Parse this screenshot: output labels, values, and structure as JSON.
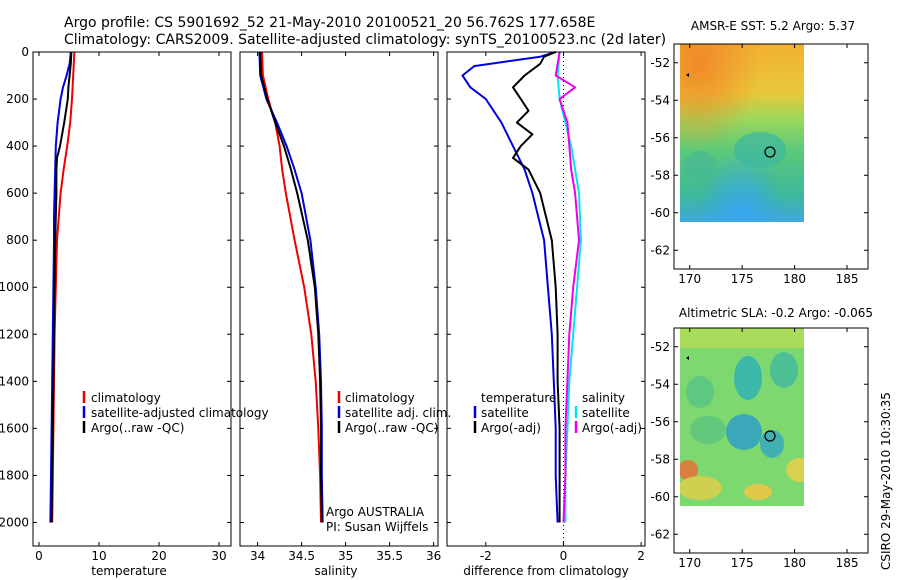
{
  "header": {
    "line1": "Argo profile: CS 5901692_52 21-May-2010 20100521_20 56.762S 177.658E",
    "line2": "Climatology: CARS2009. Satellite-adjusted climatology: synTS_20100523.nc (2d later)"
  },
  "side_label": "CSIRO 29-May-2010 10:30:35",
  "colors": {
    "climatology": "#ee0000",
    "satellite": "#0000dd",
    "argo": "#000000",
    "satellite_sal_diff": "#00e5ee",
    "argo_sal_diff": "#ee00ee"
  },
  "chart_data": [
    {
      "id": "temperature",
      "type": "line",
      "xlabel": "temperature",
      "ylabel": "",
      "xlim": [
        -1,
        32
      ],
      "ylim": [
        2100,
        0
      ],
      "xticks": [
        0,
        10,
        20,
        30
      ],
      "yticks": [
        0,
        200,
        400,
        600,
        800,
        1000,
        1200,
        1400,
        1600,
        1800,
        2000
      ],
      "legend": [
        "climatology",
        "satellite-adjusted climatology",
        "Argo(..raw -QC)"
      ],
      "series": [
        {
          "name": "climatology",
          "color": "#ee0000",
          "depth": [
            0,
            50,
            100,
            150,
            200,
            300,
            400,
            500,
            600,
            700,
            800,
            1000,
            1200,
            1400,
            1600,
            1800,
            2000
          ],
          "values": [
            5.9,
            5.8,
            5.7,
            5.6,
            5.5,
            5.2,
            4.7,
            4.1,
            3.6,
            3.3,
            3.0,
            2.8,
            2.6,
            2.5,
            2.4,
            2.3,
            2.2
          ]
        },
        {
          "name": "satellite-adjusted climatology",
          "color": "#0000dd",
          "depth": [
            0,
            50,
            100,
            150,
            200,
            300,
            400,
            500,
            600,
            700,
            800,
            1000,
            1200,
            1400,
            1600,
            1800,
            2000
          ],
          "values": [
            5.3,
            5.1,
            4.6,
            4.0,
            3.6,
            3.1,
            2.8,
            2.7,
            2.6,
            2.5,
            2.5,
            2.4,
            2.3,
            2.2,
            2.1,
            2.0,
            1.9
          ]
        },
        {
          "name": "Argo(..raw -QC)",
          "color": "#000000",
          "depth": [
            0,
            50,
            100,
            150,
            200,
            300,
            400,
            450,
            500,
            600,
            700,
            800,
            1000,
            1200,
            1400,
            1600,
            1800,
            2000
          ],
          "values": [
            5.4,
            5.3,
            5.1,
            4.9,
            4.8,
            4.2,
            3.5,
            3.0,
            2.9,
            2.9,
            2.8,
            2.7,
            2.6,
            2.5,
            2.4,
            2.3,
            2.2,
            2.1
          ]
        }
      ]
    },
    {
      "id": "salinity",
      "type": "line",
      "xlabel": "salinity",
      "ylabel": "",
      "xlim": [
        33.8,
        36.05
      ],
      "ylim": [
        2100,
        0
      ],
      "xticks": [
        34,
        34.5,
        35,
        35.5,
        36
      ],
      "yticks": [
        0,
        200,
        400,
        600,
        800,
        1000,
        1200,
        1400,
        1600,
        1800,
        2000
      ],
      "legend": [
        "climatology",
        "satellite adj. clim.",
        "Argo(..raw -QC)"
      ],
      "annotations": [
        "Argo AUSTRALIA",
        "PI: Susan Wijffels"
      ],
      "series": [
        {
          "name": "climatology",
          "color": "#ee0000",
          "depth": [
            0,
            100,
            200,
            300,
            400,
            500,
            600,
            800,
            1000,
            1200,
            1400,
            1600,
            1800,
            2000
          ],
          "values": [
            34.05,
            34.06,
            34.12,
            34.2,
            34.25,
            34.28,
            34.32,
            34.42,
            34.53,
            34.61,
            34.66,
            34.69,
            34.71,
            34.72
          ]
        },
        {
          "name": "satellite adj. clim.",
          "color": "#0000dd",
          "depth": [
            0,
            100,
            200,
            300,
            400,
            500,
            600,
            800,
            1000,
            1200,
            1400,
            1600,
            1800,
            2000
          ],
          "values": [
            34.02,
            34.03,
            34.1,
            34.22,
            34.33,
            34.42,
            34.5,
            34.6,
            34.66,
            34.7,
            34.72,
            34.73,
            34.73,
            34.74
          ]
        },
        {
          "name": "Argo(..raw -QC)",
          "color": "#000000",
          "depth": [
            0,
            100,
            200,
            300,
            400,
            500,
            600,
            800,
            1000,
            1200,
            1400,
            1600,
            1800,
            2000
          ],
          "values": [
            34.03,
            34.04,
            34.11,
            34.2,
            34.3,
            34.38,
            34.45,
            34.57,
            34.65,
            34.69,
            34.71,
            34.72,
            34.72,
            34.73
          ]
        }
      ]
    },
    {
      "id": "difference",
      "type": "line",
      "xlabel": "difference from climatology",
      "ylabel": "",
      "xlim": [
        -3,
        2.1
      ],
      "ylim": [
        2100,
        0
      ],
      "xticks": [
        -2,
        0,
        2
      ],
      "yticks": [
        0,
        200,
        400,
        600,
        800,
        1000,
        1200,
        1400,
        1600,
        1800,
        2000
      ],
      "legend_temperature": [
        "temperature",
        "satellite",
        "Argo(-adj)"
      ],
      "legend_salinity": [
        "salinity",
        "satellite",
        "Argo(-adj)"
      ],
      "series": [
        {
          "name": "temperature satellite",
          "color": "#0000dd",
          "depth": [
            0,
            20,
            60,
            100,
            150,
            200,
            300,
            400,
            500,
            600,
            800,
            1000,
            1200,
            1400,
            1600,
            1800,
            2000
          ],
          "values": [
            -0.2,
            -0.6,
            -2.3,
            -2.6,
            -2.4,
            -2.0,
            -1.6,
            -1.3,
            -1.0,
            -0.8,
            -0.5,
            -0.4,
            -0.3,
            -0.25,
            -0.2,
            -0.2,
            -0.15
          ]
        },
        {
          "name": "temperature Argo(-adj)",
          "color": "#000000",
          "depth": [
            0,
            20,
            50,
            100,
            150,
            200,
            250,
            300,
            350,
            400,
            450,
            500,
            600,
            800,
            1000,
            1200,
            1400,
            1600,
            1800,
            2000
          ],
          "values": [
            -0.2,
            -0.5,
            -0.6,
            -1.0,
            -1.3,
            -1.1,
            -0.9,
            -1.2,
            -0.8,
            -1.1,
            -1.3,
            -0.9,
            -0.6,
            -0.3,
            -0.2,
            -0.15,
            -0.15,
            -0.1,
            -0.1,
            -0.1
          ]
        },
        {
          "name": "salinity satellite",
          "color": "#00e5ee",
          "depth": [
            0,
            100,
            200,
            300,
            400,
            500,
            600,
            800,
            1000,
            1200,
            1400,
            1600,
            1800,
            2000
          ],
          "values": [
            -0.1,
            -0.15,
            -0.1,
            0.05,
            0.2,
            0.3,
            0.4,
            0.45,
            0.35,
            0.25,
            0.15,
            0.1,
            0.05,
            0.05
          ]
        },
        {
          "name": "salinity Argo(-adj)",
          "color": "#ee00ee",
          "depth": [
            0,
            100,
            150,
            200,
            300,
            400,
            500,
            600,
            800,
            1000,
            1200,
            1400,
            1600,
            1800,
            2000
          ],
          "values": [
            -0.1,
            -0.2,
            0.3,
            -0.1,
            0.1,
            0.15,
            0.2,
            0.3,
            0.4,
            0.25,
            0.15,
            0.1,
            0.05,
            0.05,
            0.0
          ]
        }
      ]
    },
    {
      "id": "sst_map",
      "type": "heatmap",
      "title": "AMSR-E SST: 5.2 Argo: 5.37",
      "xlim": [
        168.5,
        187
      ],
      "ylim": [
        -63,
        -51
      ],
      "xticks": [
        170,
        175,
        180,
        185
      ],
      "yticks": [
        -52,
        -54,
        -56,
        -58,
        -60,
        -62
      ],
      "argo_position": {
        "lon": 177.658,
        "lat": -56.762
      }
    },
    {
      "id": "sla_map",
      "type": "heatmap",
      "title": "Altimetric SLA: -0.2 Argo: -0.065",
      "xlim": [
        168.5,
        187
      ],
      "ylim": [
        -63,
        -51
      ],
      "xticks": [
        170,
        175,
        180,
        185
      ],
      "yticks": [
        -52,
        -54,
        -56,
        -58,
        -60,
        -62
      ],
      "argo_position": {
        "lon": 177.658,
        "lat": -56.762
      }
    }
  ]
}
